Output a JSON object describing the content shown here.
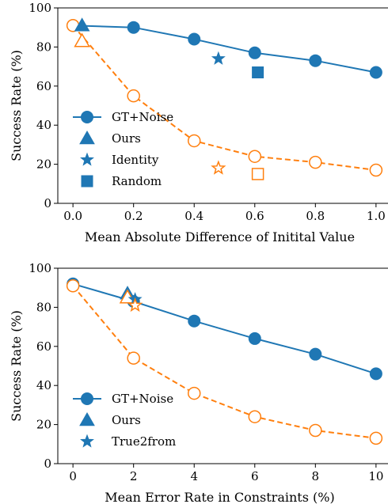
{
  "colors": {
    "solid": "#1f77b4",
    "dashed": "#ff7f0e"
  },
  "chart_data": [
    {
      "type": "line",
      "xlabel": "Mean Absolute Difference of Initital Value",
      "ylabel": "Success Rate (%)",
      "xlim": [
        -0.05,
        1.05
      ],
      "ylim": [
        0,
        100
      ],
      "xticks": [
        "0.0",
        "0.2",
        "0.4",
        "0.6",
        "0.8",
        "1.0"
      ],
      "xtick_values": [
        0,
        0.2,
        0.4,
        0.6,
        0.8,
        1.0
      ],
      "yticks": [
        "0",
        "20",
        "40",
        "60",
        "80",
        "100"
      ],
      "ytick_values": [
        0,
        20,
        40,
        60,
        80,
        100
      ],
      "grid": false,
      "legend_position": "lower-left",
      "series": [
        {
          "name": "GT+Noise",
          "marker": "circle",
          "filled": true,
          "line": "solid",
          "x": [
            0.0,
            0.2,
            0.4,
            0.6,
            0.8,
            1.0
          ],
          "y": [
            91,
            90,
            84,
            77,
            73,
            67
          ]
        },
        {
          "name": "",
          "marker": "circle",
          "filled": false,
          "line": "dashed",
          "x": [
            0.0,
            0.2,
            0.4,
            0.6,
            0.8,
            1.0
          ],
          "y": [
            91,
            55,
            32,
            24,
            21,
            17
          ]
        }
      ],
      "points": [
        {
          "name": "Ours",
          "marker": "triangle",
          "filled": true,
          "x": 0.03,
          "y": 91
        },
        {
          "name": "",
          "marker": "triangle",
          "filled": false,
          "x": 0.03,
          "y": 83
        },
        {
          "name": "Identity",
          "marker": "star",
          "filled": true,
          "x": 0.48,
          "y": 74
        },
        {
          "name": "",
          "marker": "star",
          "filled": false,
          "x": 0.48,
          "y": 18
        },
        {
          "name": "Random",
          "marker": "square",
          "filled": true,
          "x": 0.61,
          "y": 67
        },
        {
          "name": "",
          "marker": "square",
          "filled": false,
          "x": 0.61,
          "y": 15
        }
      ],
      "legend": [
        {
          "label": "GT+Noise",
          "marker": "circle"
        },
        {
          "label": "Ours",
          "marker": "triangle"
        },
        {
          "label": "Identity",
          "marker": "star"
        },
        {
          "label": "Random",
          "marker": "square"
        }
      ]
    },
    {
      "type": "line",
      "xlabel": "Mean Error Rate in Constraints (%)",
      "ylabel": "Success Rate (%)",
      "xlim": [
        -0.5,
        10.5
      ],
      "ylim": [
        0,
        100
      ],
      "xticks": [
        "0",
        "2",
        "4",
        "6",
        "8",
        "10"
      ],
      "xtick_values": [
        0,
        2,
        4,
        6,
        8,
        10
      ],
      "yticks": [
        "0",
        "20",
        "40",
        "60",
        "80",
        "100"
      ],
      "ytick_values": [
        0,
        20,
        40,
        60,
        80,
        100
      ],
      "grid": false,
      "legend_position": "lower-left",
      "series": [
        {
          "name": "GT+Noise",
          "marker": "circle",
          "filled": true,
          "line": "solid",
          "x": [
            0,
            2,
            4,
            6,
            8,
            10
          ],
          "y": [
            92,
            83,
            73,
            64,
            56,
            46
          ]
        },
        {
          "name": "",
          "marker": "circle",
          "filled": false,
          "line": "dashed",
          "x": [
            0,
            2,
            4,
            6,
            8,
            10
          ],
          "y": [
            91,
            54,
            36,
            24,
            17,
            13
          ]
        }
      ],
      "points": [
        {
          "name": "Ours",
          "marker": "triangle",
          "filled": true,
          "x": 1.8,
          "y": 87
        },
        {
          "name": "",
          "marker": "triangle",
          "filled": false,
          "x": 1.8,
          "y": 85
        },
        {
          "name": "True2from",
          "marker": "star",
          "filled": true,
          "x": 2.05,
          "y": 84
        },
        {
          "name": "",
          "marker": "star",
          "filled": false,
          "x": 2.05,
          "y": 81
        }
      ],
      "legend": [
        {
          "label": "GT+Noise",
          "marker": "circle"
        },
        {
          "label": "Ours",
          "marker": "triangle"
        },
        {
          "label": "True2from",
          "marker": "star"
        }
      ]
    }
  ]
}
